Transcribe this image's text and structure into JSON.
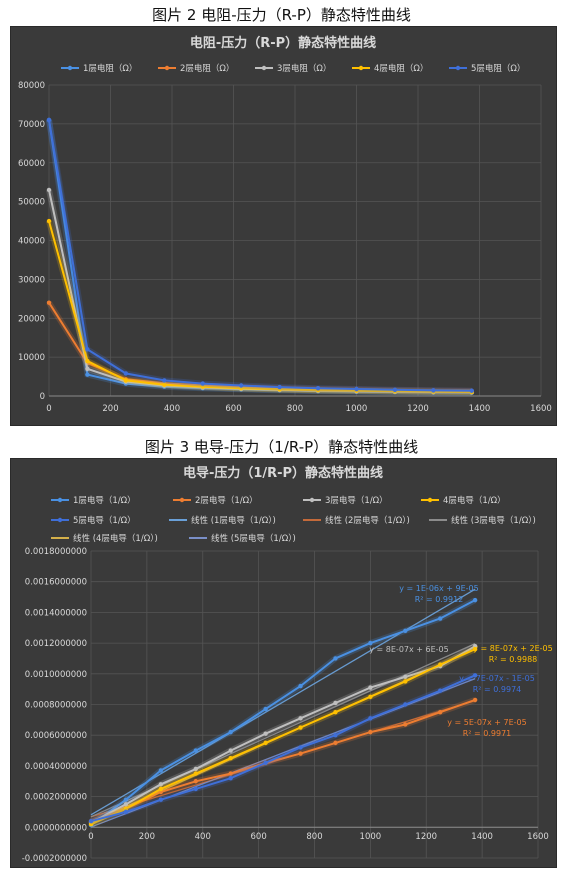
{
  "captions": {
    "top": "图片 2 电阻-压力（R-P）静态特性曲线",
    "bottom": "图片 3 电导-压力（1/R-P）静态特性曲线"
  },
  "colors": {
    "background": "#3a3a3a",
    "grid": "#555555",
    "text": "#d9d9d9",
    "series": [
      "#4a90e2",
      "#ed7d31",
      "#bfbfbf",
      "#ffc000",
      "#3f6fd8"
    ],
    "trend": [
      "#6aa0d8",
      "#c46a3a",
      "#8c8c8c",
      "#d4b04a",
      "#7a8fc8"
    ]
  },
  "chart_data": [
    {
      "type": "line",
      "title": "电阻-压力（R-P）静态特性曲线",
      "xlim": [
        0,
        1600
      ],
      "ylim": [
        0,
        80000
      ],
      "xticks": [
        "0",
        "200",
        "400",
        "600",
        "800",
        "1000",
        "1200",
        "1400",
        "1600"
      ],
      "yticks": [
        "0",
        "10000",
        "20000",
        "30000",
        "40000",
        "50000",
        "60000",
        "70000",
        "80000"
      ],
      "grid": true,
      "legend_position": "top",
      "x": [
        0,
        125,
        250,
        375,
        500,
        625,
        750,
        875,
        1000,
        1125,
        1250,
        1375
      ],
      "series": [
        {
          "name": "1层电阻（Ω）",
          "values": [
            71000,
            5500,
            3200,
            2400,
            2000,
            1700,
            1450,
            1250,
            1100,
            1000,
            900,
            850
          ]
        },
        {
          "name": "2层电阻（Ω）",
          "values": [
            24000,
            8500,
            4300,
            3300,
            2700,
            2300,
            2000,
            1800,
            1650,
            1500,
            1400,
            1300
          ]
        },
        {
          "name": "3层电阻（Ω）",
          "values": [
            53000,
            7000,
            3700,
            2700,
            2200,
            1850,
            1600,
            1400,
            1250,
            1100,
            1000,
            950
          ]
        },
        {
          "name": "4层电阻（Ω）",
          "values": [
            45000,
            9000,
            4000,
            2900,
            2400,
            2000,
            1700,
            1500,
            1350,
            1200,
            1100,
            1000
          ]
        },
        {
          "name": "5层电阻（Ω）",
          "values": [
            71000,
            12000,
            5800,
            4000,
            3200,
            2700,
            2300,
            2000,
            1800,
            1600,
            1450,
            1350
          ]
        }
      ]
    },
    {
      "type": "line",
      "title": "电导-压力（1/R-P）静态特性曲线",
      "xlim": [
        0,
        1600
      ],
      "ylim": [
        -0.0002,
        0.0018
      ],
      "xticks": [
        "0",
        "200",
        "400",
        "600",
        "800",
        "1000",
        "1200",
        "1400",
        "1600"
      ],
      "yticks": [
        "-0.0002000000",
        "0.0000000000",
        "0.0002000000",
        "0.0004000000",
        "0.0006000000",
        "0.0008000000",
        "0.0010000000",
        "0.0012000000",
        "0.0014000000",
        "0.0016000000",
        "0.0018000000"
      ],
      "grid": true,
      "legend_position": "top",
      "x": [
        0,
        125,
        250,
        375,
        500,
        625,
        750,
        875,
        1000,
        1125,
        1250,
        1375
      ],
      "series": [
        {
          "name": "1层电导（1/Ω）",
          "values": [
            1.4e-05,
            0.00018,
            0.00037,
            0.0005,
            0.00062,
            0.00077,
            0.00092,
            0.0011,
            0.0012,
            0.00128,
            0.00136,
            0.00148
          ]
        },
        {
          "name": "2层电导（1/Ω）",
          "values": [
            4e-05,
            0.00012,
            0.00023,
            0.0003,
            0.00035,
            0.00042,
            0.00048,
            0.00055,
            0.00062,
            0.00067,
            0.00075,
            0.00083
          ]
        },
        {
          "name": "3层电导（1/Ω）",
          "values": [
            3e-05,
            0.00015,
            0.00028,
            0.00038,
            0.0005,
            0.00061,
            0.00071,
            0.00081,
            0.00091,
            0.00098,
            0.00105,
            0.00118
          ]
        },
        {
          "name": "4层电导（1/Ω）",
          "values": [
            2e-05,
            0.00012,
            0.00025,
            0.00035,
            0.00045,
            0.00055,
            0.00065,
            0.00075,
            0.00085,
            0.00095,
            0.00106,
            0.00116
          ]
        },
        {
          "name": "5层电导（1/Ω）",
          "values": [
            4e-05,
            0.0001,
            0.00018,
            0.00025,
            0.00032,
            0.00042,
            0.00052,
            0.0006,
            0.00071,
            0.0008,
            0.00089,
            0.00099
          ]
        }
      ],
      "trendline_legend": [
        "线性 (1层电导（1/Ω）)",
        "线性 (2层电导（1/Ω）)",
        "线性 (3层电导（1/Ω）)",
        "线性 (4层电导（1/Ω）)",
        "线性 (5层电导（1/Ω）)"
      ],
      "annotations": [
        {
          "series": 0,
          "equation": "y = 1E-06x + 9E-05",
          "r2": "R² = 0.9912"
        },
        {
          "series": 2,
          "equation": "y = 8E-07x + 6E-05",
          "r2": ""
        },
        {
          "series": 3,
          "equation": "y = 8E-07x + 2E-05",
          "r2": "R² = 0.9988"
        },
        {
          "series": 4,
          "equation": "y = 7E-07x - 1E-05",
          "r2": "R² = 0.9974"
        },
        {
          "series": 1,
          "equation": "y = 5E-07x + 7E-05",
          "r2": "R² = 0.9971"
        }
      ]
    }
  ]
}
